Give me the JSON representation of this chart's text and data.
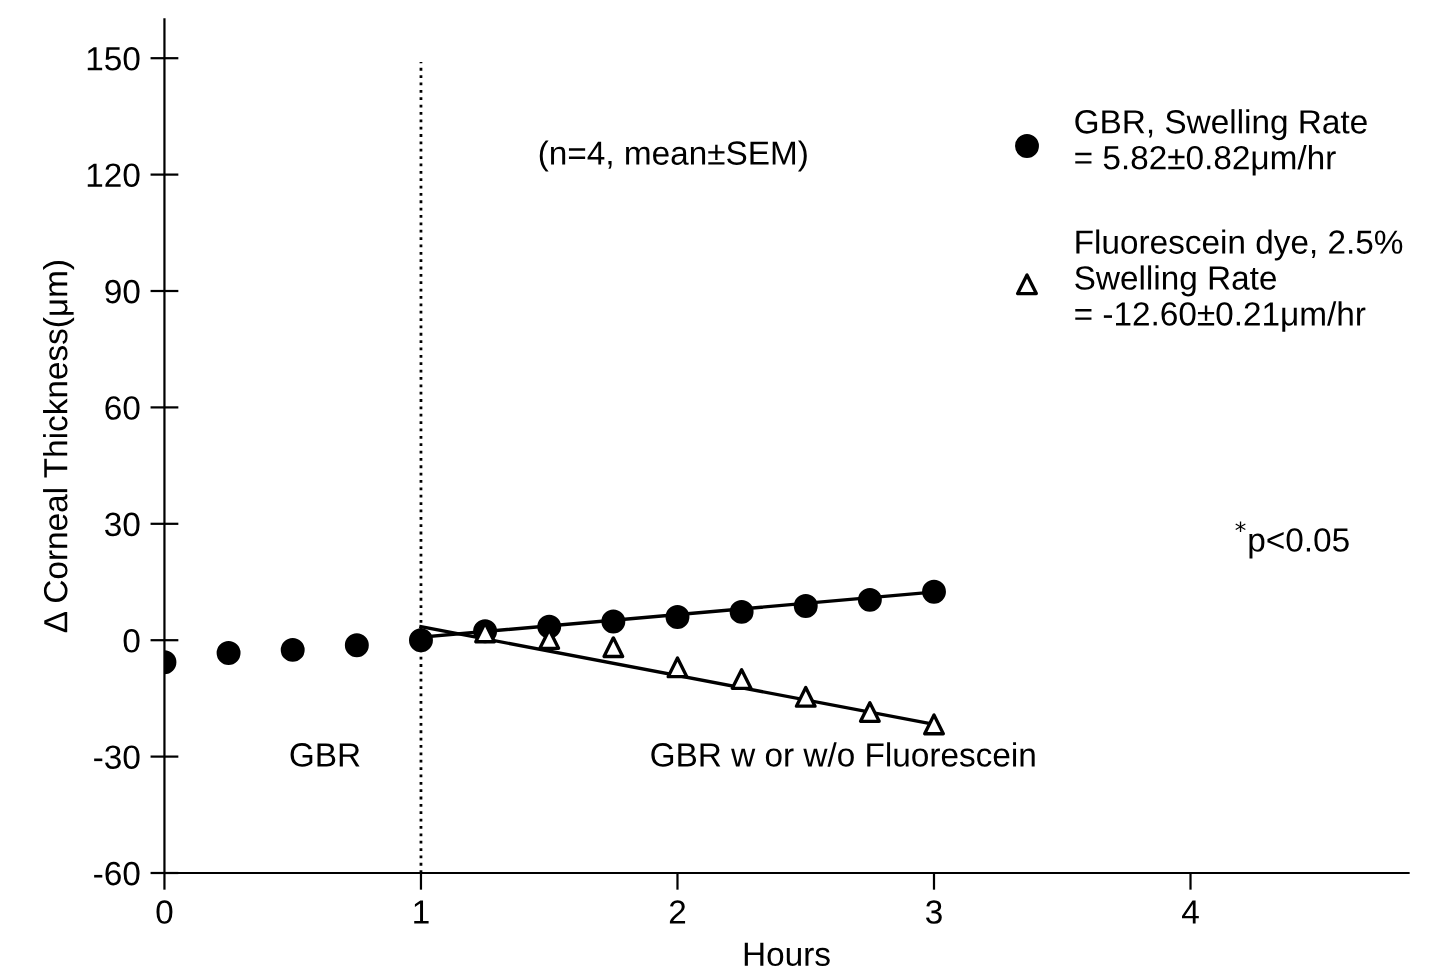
{
  "chart_data": {
    "type": "scatter",
    "xlabel": "Hours",
    "ylabel": "Δ Corneal Thickness(μm)",
    "xlim": [
      0,
      4.85
    ],
    "xticks": [
      0,
      1,
      2,
      3,
      4
    ],
    "ylim": [
      -60,
      160
    ],
    "yticks": [
      -60,
      -30,
      0,
      30,
      60,
      90,
      120,
      150
    ],
    "grid": false,
    "legend": "top right",
    "series": [
      {
        "name": "GBR, Swelling Rate\n= 5.82±0.82μm/hr",
        "color": "#000000",
        "marker": "circle",
        "x": [
          0,
          0.25,
          0.5,
          0.75,
          1,
          1.25,
          1.5,
          1.75,
          2,
          2.25,
          2.5,
          2.75,
          3
        ],
        "values": [
          -5.7,
          -3.3,
          -2.5,
          -1.3,
          0,
          2.3,
          3.5,
          4.8,
          6,
          7.3,
          8.8,
          10.4,
          12.5
        ]
      },
      {
        "name": "Fluorescein dye, 2.5%\nSwelling Rate\n= -12.60±0.21μm/hr",
        "color": "#000000",
        "marker": "triangle",
        "x": [
          1.25,
          1.5,
          1.75,
          2,
          2.25,
          2.5,
          2.75,
          3
        ],
        "values": [
          2,
          0.3,
          -1.8,
          -7,
          -10,
          -14.6,
          -18.5,
          -21.7
        ]
      },
      {
        "type": "line",
        "color": "#000000",
        "x": [
          1,
          3
        ],
        "values": [
          0.8,
          12.4
        ]
      },
      {
        "type": "line",
        "color": "#000000",
        "x": [
          1,
          3
        ],
        "values": [
          3.5,
          -21.7
        ]
      }
    ],
    "ref_lines": [
      {
        "axis": "x",
        "value": 1,
        "line_style": "dotted",
        "color": "#000000"
      }
    ],
    "annotations": [
      "(n=4, mean±SEM)",
      "$^{*}$p<0.05",
      "GBR",
      "GBR w or w/o Fluorescein"
    ]
  }
}
